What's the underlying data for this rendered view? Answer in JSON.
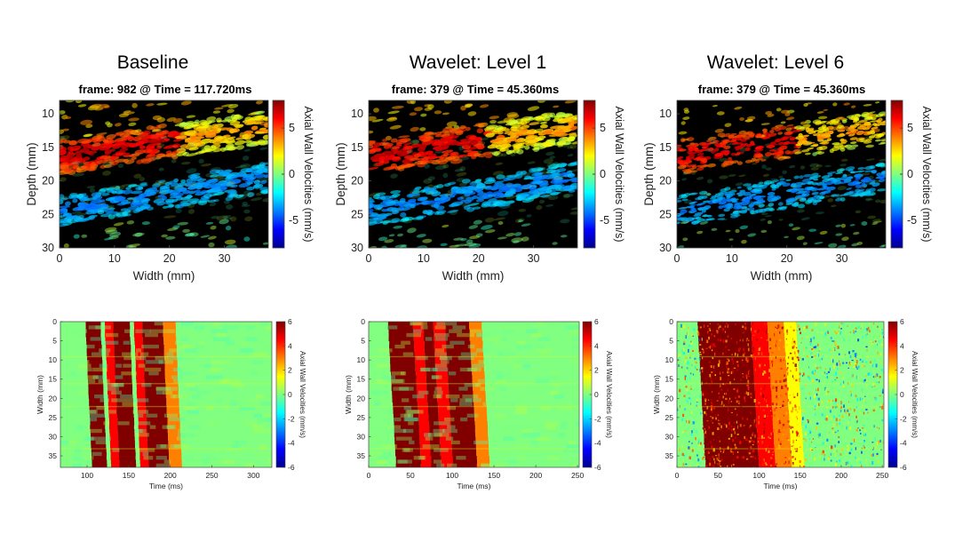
{
  "chart_data": [
    {
      "type": "heatmap",
      "column_title": "Baseline",
      "title": "frame: 982 @ Time = 117.720ms",
      "xlabel": "Width (mm)",
      "ylabel": "Depth (mm)",
      "xlim": [
        0,
        38
      ],
      "ylim": [
        8,
        30
      ],
      "xticks": [
        0,
        10,
        20,
        30
      ],
      "yticks": [
        10,
        15,
        20,
        25,
        30
      ],
      "colorbar_label": "Axial Wall Velocities (mm/s)",
      "clim": [
        -8,
        8
      ],
      "colorbar_ticks": [
        5,
        0,
        -5
      ],
      "colormap": "jet on black background",
      "features": {
        "anterior_wall": {
          "sign": "positive",
          "peak_value": 7,
          "depth_at_width0": 16.5,
          "depth_at_width38": 12
        },
        "posterior_wall": {
          "sign": "negative",
          "peak_value": -4,
          "depth_at_width0": 24.5,
          "depth_at_width38": 19.5
        }
      }
    },
    {
      "type": "heatmap",
      "column_title": "Wavelet: Level 1",
      "title": "frame: 379 @ Time = 45.360ms",
      "xlabel": "Width (mm)",
      "ylabel": "Depth (mm)",
      "xlim": [
        0,
        38
      ],
      "ylim": [
        8,
        30
      ],
      "xticks": [
        0,
        10,
        20,
        30
      ],
      "yticks": [
        10,
        15,
        20,
        25,
        30
      ],
      "colorbar_label": "Axial Wall Velocities (mm/s)",
      "clim": [
        -8,
        8
      ],
      "colorbar_ticks": [
        5,
        0,
        -5
      ],
      "colormap": "jet on black background",
      "features": {
        "anterior_wall": {
          "sign": "positive",
          "peak_value": 7,
          "depth_at_width0": 16.5,
          "depth_at_width38": 12
        },
        "posterior_wall": {
          "sign": "negative",
          "peak_value": -4,
          "depth_at_width0": 24.5,
          "depth_at_width38": 19.5
        }
      }
    },
    {
      "type": "heatmap",
      "column_title": "Wavelet: Level 6",
      "title": "frame: 379 @ Time = 45.360ms",
      "xlabel": "Width (mm)",
      "ylabel": "Depth (mm)",
      "xlim": [
        0,
        38
      ],
      "ylim": [
        8,
        30
      ],
      "xticks": [
        0,
        10,
        20,
        30
      ],
      "yticks": [
        10,
        15,
        20,
        25,
        30
      ],
      "colorbar_label": "Axial Wall Velocities (mm/s)",
      "clim": [
        -8,
        8
      ],
      "colorbar_ticks": [
        5,
        0,
        -5
      ],
      "colormap": "jet on black background",
      "features": {
        "anterior_wall": {
          "sign": "positive",
          "peak_value": 7,
          "depth_at_width0": 16.5,
          "depth_at_width38": 12
        },
        "posterior_wall": {
          "sign": "negative",
          "peak_value": -4,
          "depth_at_width0": 24.5,
          "depth_at_width38": 19.5
        }
      }
    },
    {
      "type": "heatmap",
      "xlabel": "Time (ms)",
      "ylabel": "Width (mm)",
      "xlim": [
        68,
        322
      ],
      "ylim": [
        0,
        38
      ],
      "xticks": [
        100,
        150,
        200,
        250,
        300
      ],
      "yticks": [
        0,
        5,
        10,
        15,
        20,
        25,
        30,
        35
      ],
      "colorbar_label": "Axial Wall Velocities (mm/s)",
      "clim": [
        -6,
        6
      ],
      "colorbar_ticks": [
        6,
        4,
        2,
        0,
        -2,
        -4,
        -6
      ],
      "colormap": "jet",
      "background_value": 0,
      "bands": [
        {
          "start_ms": 102,
          "end_ms": 120,
          "value": 6
        },
        {
          "start_ms": 125,
          "end_ms": 135,
          "value": 4.5
        },
        {
          "start_ms": 135,
          "end_ms": 155,
          "value": 6
        },
        {
          "start_ms": 160,
          "end_ms": 170,
          "value": 4.5
        },
        {
          "start_ms": 170,
          "end_ms": 195,
          "value": 6
        },
        {
          "start_ms": 195,
          "end_ms": 210,
          "value": 3
        }
      ],
      "onset_tilt_ms": 8
    },
    {
      "type": "heatmap",
      "xlabel": "Time (ms)",
      "ylabel": "Width (mm)",
      "xlim": [
        0,
        252
      ],
      "ylim": [
        0,
        38
      ],
      "xticks": [
        0,
        50,
        100,
        150,
        200,
        250
      ],
      "yticks": [
        0,
        5,
        10,
        15,
        20,
        25,
        30,
        35
      ],
      "colorbar_label": "Axial Wall Velocities (mm/s)",
      "clim": [
        -6,
        6
      ],
      "colorbar_ticks": [
        6,
        4,
        2,
        0,
        -2,
        -4,
        -6
      ],
      "colormap": "jet",
      "background_value": 0,
      "bands": [
        {
          "start_ms": 28,
          "end_ms": 58,
          "value": 6
        },
        {
          "start_ms": 58,
          "end_ms": 70,
          "value": 4.5
        },
        {
          "start_ms": 70,
          "end_ms": 82,
          "value": 6
        },
        {
          "start_ms": 82,
          "end_ms": 96,
          "value": 4.5
        },
        {
          "start_ms": 96,
          "end_ms": 125,
          "value": 6
        },
        {
          "start_ms": 125,
          "end_ms": 140,
          "value": 3
        }
      ],
      "onset_tilt_ms": 10
    },
    {
      "type": "heatmap",
      "xlabel": "Time (ms)",
      "ylabel": "Width (mm)",
      "xlim": [
        0,
        252
      ],
      "ylim": [
        0,
        38
      ],
      "xticks": [
        0,
        50,
        100,
        150,
        200,
        250
      ],
      "yticks": [
        0,
        5,
        10,
        15,
        20,
        25,
        30,
        35
      ],
      "colorbar_label": "Axial Wall Velocities (mm/s)",
      "clim": [
        -6,
        6
      ],
      "colorbar_ticks": [
        6,
        4,
        2,
        0,
        -2,
        -4,
        -6
      ],
      "colormap": "jet",
      "background_value": 0,
      "bands": [
        {
          "start_ms": 30,
          "end_ms": 95,
          "value": 6
        },
        {
          "start_ms": 95,
          "end_ms": 115,
          "value": 4.5
        },
        {
          "start_ms": 115,
          "end_ms": 135,
          "value": 3
        },
        {
          "start_ms": 135,
          "end_ms": 150,
          "value": 1.5
        }
      ],
      "onset_tilt_ms": 10,
      "noise": "strong speckle noise"
    }
  ]
}
